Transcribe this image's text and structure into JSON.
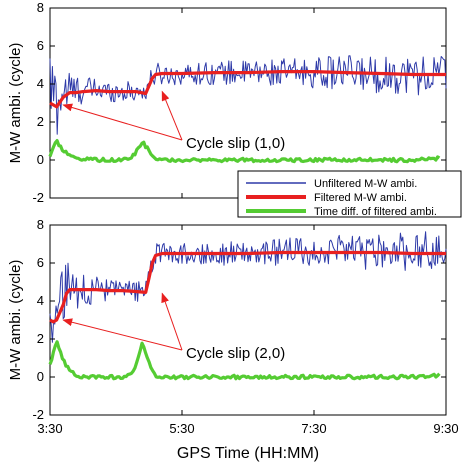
{
  "chart_data": [
    {
      "type": "line",
      "ylabel": "M-W ambi. (cycle)",
      "ylim": [
        -2,
        8
      ],
      "yticks": [
        -2,
        0,
        2,
        4,
        6,
        8
      ],
      "xlim": [
        3.5,
        9.5
      ],
      "grid": false,
      "legend_position": "bottom-right",
      "series": [
        {
          "name": "Unfiltered M-W ambi.",
          "color": "#2e3aa8",
          "x": [
            3.5,
            3.6,
            3.7,
            3.8,
            3.9,
            4.0,
            4.2,
            4.4,
            4.6,
            4.8,
            4.95,
            5.0,
            5.05,
            5.1,
            5.2,
            5.5,
            6.0,
            6.5,
            7.0,
            7.5,
            8.0,
            8.5,
            9.0,
            9.5
          ],
          "values": [
            3.9,
            3.0,
            3.6,
            3.7,
            3.6,
            3.7,
            3.7,
            3.6,
            3.6,
            3.6,
            3.6,
            4.0,
            4.4,
            4.5,
            4.5,
            4.5,
            4.6,
            4.6,
            4.6,
            4.6,
            4.6,
            4.5,
            4.5,
            4.5
          ],
          "noise": [
            2.2,
            2.2,
            1.6,
            1.2,
            1.0,
            0.8,
            0.7,
            0.6,
            0.6,
            0.6,
            0.6,
            0.6,
            0.6,
            0.7,
            0.6,
            0.6,
            0.7,
            0.7,
            0.8,
            0.9,
            1.0,
            1.1,
            1.2,
            1.3
          ]
        },
        {
          "name": "Filtered M-W ambi.",
          "color": "#e82020",
          "x": [
            3.5,
            3.55,
            3.6,
            3.7,
            3.8,
            3.9,
            4.0,
            4.2,
            4.4,
            4.6,
            4.8,
            4.95,
            5.0,
            5.05,
            5.1,
            5.2,
            5.5,
            6.0,
            6.5,
            7.0,
            7.5,
            8.0,
            8.5,
            9.0,
            9.5
          ],
          "values": [
            3.0,
            2.9,
            2.8,
            3.3,
            3.55,
            3.55,
            3.6,
            3.65,
            3.6,
            3.6,
            3.6,
            3.5,
            3.9,
            4.3,
            4.5,
            4.55,
            4.55,
            4.6,
            4.6,
            4.65,
            4.65,
            4.6,
            4.55,
            4.5,
            4.5
          ]
        },
        {
          "name": "Time diff. of filtered ambi.",
          "color": "#55cc33",
          "x": [
            3.5,
            3.55,
            3.6,
            3.65,
            3.7,
            3.75,
            3.8,
            3.9,
            4.0,
            4.2,
            4.4,
            4.6,
            4.7,
            4.8,
            4.9,
            5.0,
            5.05,
            5.1,
            5.2,
            5.5,
            6.0,
            6.5,
            7.0,
            7.5,
            8.0,
            8.5,
            9.0,
            9.4
          ],
          "values": [
            0.1,
            0.6,
            1.0,
            0.7,
            0.5,
            0.35,
            0.2,
            0.1,
            0.05,
            0.0,
            0.0,
            0.0,
            0.05,
            0.4,
            0.95,
            0.5,
            0.2,
            0.05,
            0.0,
            0.0,
            0.0,
            0.0,
            0.0,
            0.0,
            0.0,
            0.0,
            0.0,
            0.1
          ]
        }
      ],
      "annotations": [
        {
          "text": "Cycle slip (1,0)",
          "points_to": [
            [
              3.7,
              2.9
            ],
            [
              5.2,
              3.6
            ]
          ]
        }
      ]
    },
    {
      "type": "line",
      "ylabel": "M-W ambi. (cycle)",
      "xlabel": "GPS Time (HH:MM)",
      "ylim": [
        -2,
        8
      ],
      "yticks": [
        -2,
        0,
        2,
        4,
        6,
        8
      ],
      "xlim": [
        3.5,
        9.5
      ],
      "xticks": [
        3.5,
        5.5,
        7.5,
        9.5
      ],
      "xticklabels": [
        "3:30",
        "5:30",
        "7:30",
        "9:30"
      ],
      "grid": false,
      "series": [
        {
          "name": "Unfiltered M-W ambi.",
          "color": "#2e3aa8",
          "x": [
            3.5,
            3.6,
            3.7,
            3.8,
            3.9,
            4.0,
            4.2,
            4.4,
            4.6,
            4.8,
            4.95,
            5.0,
            5.05,
            5.1,
            5.2,
            5.5,
            6.0,
            6.5,
            7.0,
            7.5,
            8.0,
            8.5,
            9.0,
            9.5
          ],
          "values": [
            3.6,
            3.0,
            4.2,
            4.6,
            4.6,
            4.6,
            4.6,
            4.5,
            4.5,
            4.5,
            4.5,
            5.2,
            6.1,
            6.5,
            6.5,
            6.5,
            6.5,
            6.5,
            6.6,
            6.6,
            6.6,
            6.6,
            6.6,
            6.6
          ],
          "noise": [
            2.2,
            2.4,
            2.0,
            1.6,
            1.2,
            1.0,
            0.8,
            0.7,
            0.6,
            0.6,
            0.6,
            0.6,
            0.6,
            0.6,
            0.6,
            0.6,
            0.7,
            0.7,
            0.8,
            0.9,
            1.0,
            1.1,
            1.2,
            1.4
          ]
        },
        {
          "name": "Filtered M-W ambi.",
          "color": "#e82020",
          "x": [
            3.5,
            3.55,
            3.6,
            3.7,
            3.75,
            3.8,
            3.9,
            4.0,
            4.2,
            4.4,
            4.6,
            4.8,
            4.95,
            5.0,
            5.05,
            5.1,
            5.2,
            5.5,
            6.0,
            6.5,
            7.0,
            7.5,
            8.0,
            8.5,
            9.0,
            9.5
          ],
          "values": [
            3.0,
            2.9,
            3.0,
            3.8,
            4.4,
            4.6,
            4.6,
            4.6,
            4.6,
            4.55,
            4.55,
            4.5,
            4.45,
            5.2,
            6.0,
            6.4,
            6.5,
            6.5,
            6.5,
            6.5,
            6.55,
            6.55,
            6.55,
            6.55,
            6.5,
            6.5
          ]
        },
        {
          "name": "Time diff. of filtered ambi.",
          "color": "#55cc33",
          "x": [
            3.5,
            3.55,
            3.6,
            3.65,
            3.7,
            3.75,
            3.8,
            3.9,
            4.0,
            4.2,
            4.4,
            4.6,
            4.7,
            4.8,
            4.9,
            5.0,
            5.05,
            5.1,
            5.2,
            5.5,
            6.0,
            6.5,
            7.0,
            7.5,
            8.0,
            8.5,
            9.0,
            9.4
          ],
          "values": [
            0.6,
            1.3,
            1.9,
            1.4,
            0.9,
            0.6,
            0.3,
            0.1,
            0.0,
            0.0,
            0.0,
            0.0,
            0.1,
            0.6,
            1.85,
            0.8,
            0.3,
            0.1,
            0.0,
            0.0,
            0.0,
            0.0,
            0.0,
            0.0,
            0.0,
            0.0,
            0.0,
            0.1
          ]
        }
      ],
      "annotations": [
        {
          "text": "Cycle slip (2,0)",
          "points_to": [
            [
              3.7,
              3.0
            ],
            [
              5.2,
              4.4
            ]
          ]
        }
      ]
    }
  ]
}
